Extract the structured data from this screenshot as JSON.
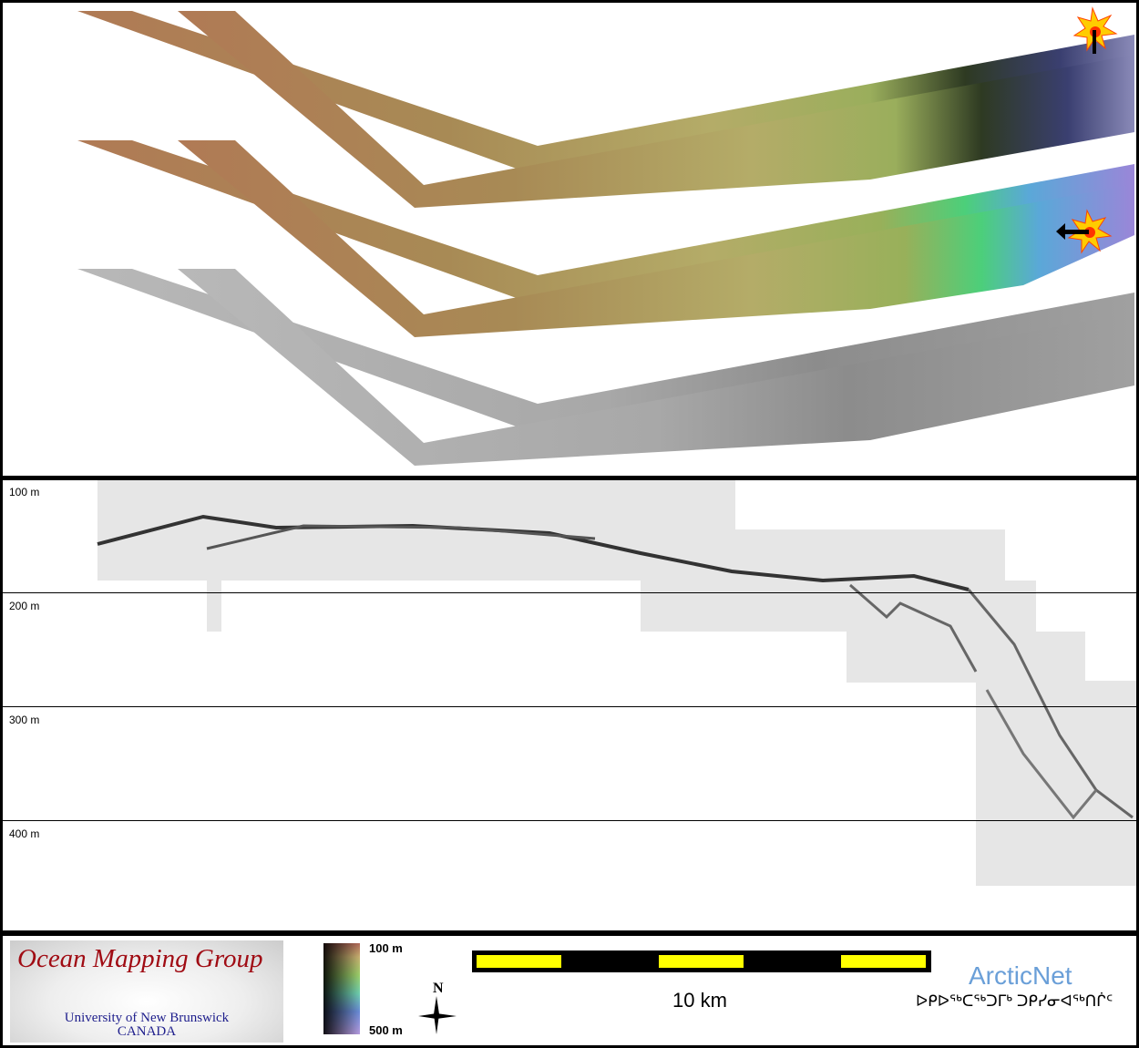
{
  "profile": {
    "depth_labels": [
      "100 m",
      "200 m",
      "300 m",
      "400 m"
    ]
  },
  "legend": {
    "logo": {
      "title": "Ocean Mapping Group",
      "subtitle_line1": "University of New Brunswick",
      "subtitle_line2": "CANADA"
    },
    "colorbar": {
      "top_label": "100 m",
      "bottom_label": "500 m",
      "colors": [
        "#b26a5a",
        "#c8b070",
        "#9ccf6a",
        "#6fd0b0",
        "#6a8cd8",
        "#b79ce0"
      ]
    },
    "north_label": "N",
    "scale_bar": {
      "label": "10 km",
      "colors": [
        "#000000",
        "#ffff00"
      ]
    },
    "partner": {
      "name": "ArcticNet",
      "syllabics": "ᐅᑭᐅᖅᑕᖅᑐᒥᒃ ᑐᑭᓯᓂᐊᖅᑎᒌᑦ"
    }
  }
}
